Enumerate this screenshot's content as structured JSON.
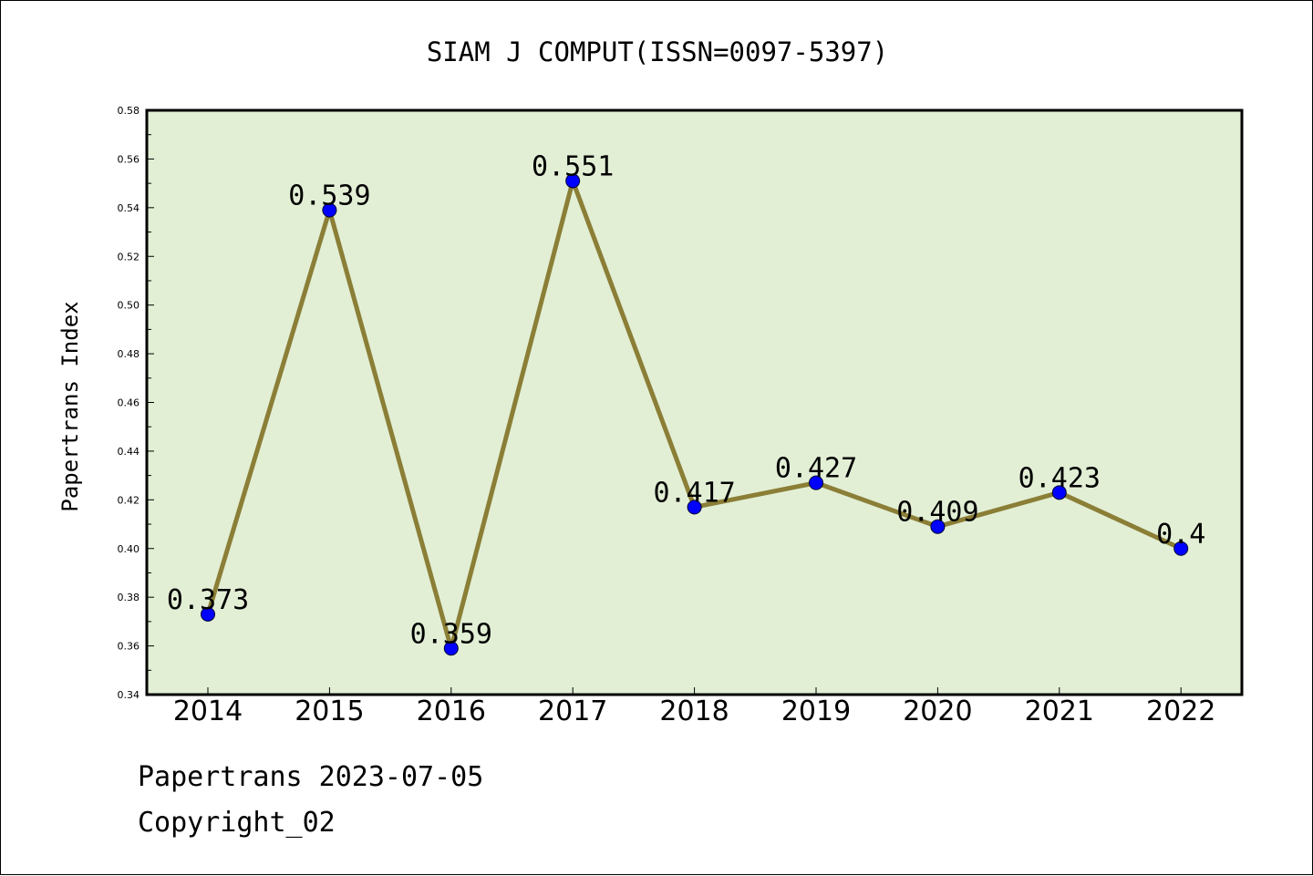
{
  "chart_data": {
    "type": "line",
    "title": "SIAM J COMPUT(ISSN=0097-5397)",
    "xlabel": "",
    "ylabel": "Papertrans Index",
    "categories": [
      "2014",
      "2015",
      "2016",
      "2017",
      "2018",
      "2019",
      "2020",
      "2021",
      "2022"
    ],
    "values": [
      0.373,
      0.539,
      0.359,
      0.551,
      0.417,
      0.427,
      0.409,
      0.423,
      0.4
    ],
    "data_labels": [
      "0.373",
      "0.539",
      "0.359",
      "0.551",
      "0.417",
      "0.427",
      "0.409",
      "0.423",
      "0.4"
    ],
    "ylim": [
      0.34,
      0.58
    ],
    "yticks": [
      "0.34",
      "0.36",
      "0.38",
      "0.40",
      "0.42",
      "0.44",
      "0.46",
      "0.48",
      "0.50",
      "0.52",
      "0.54",
      "0.56",
      "0.58"
    ],
    "grid": false,
    "colors": {
      "plot_background": "#e2efd5",
      "line": "#8b7e36",
      "marker": "#0000ff"
    }
  },
  "footer": {
    "source": "Papertrans 2023-07-05",
    "copyright": "Copyright_02"
  }
}
